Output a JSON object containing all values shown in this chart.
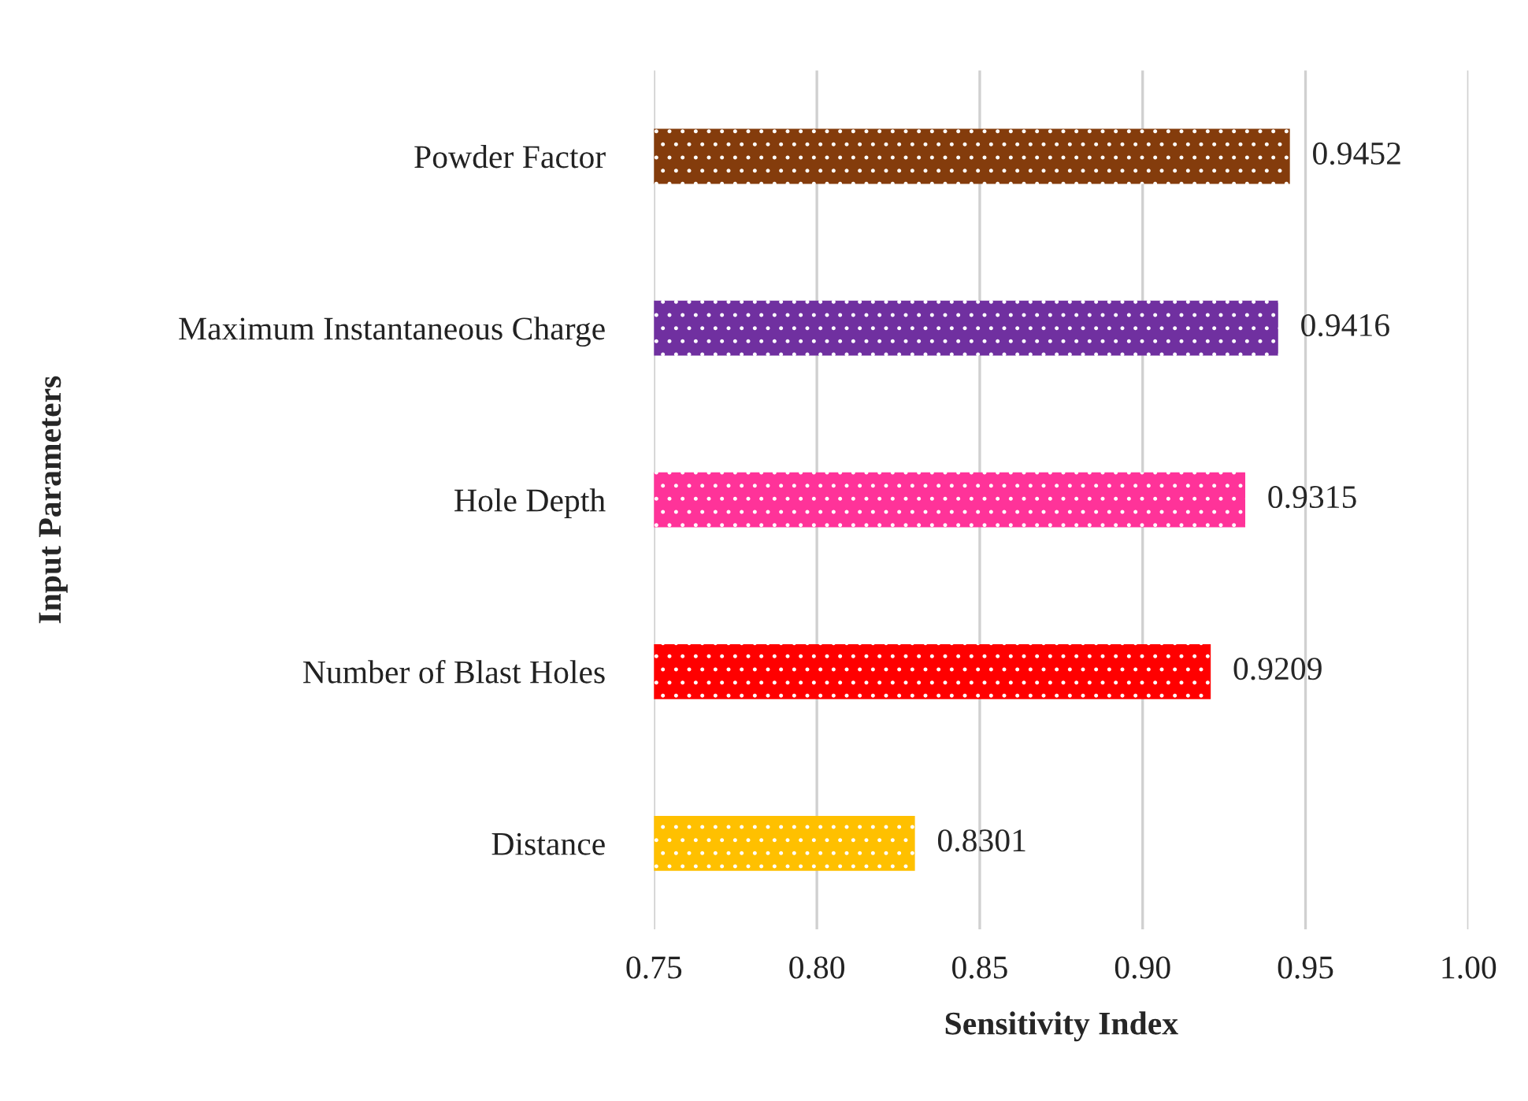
{
  "chart_data": {
    "type": "bar",
    "orientation": "horizontal",
    "xlabel": "Sensitivity Index",
    "ylabel": "Input Parameters",
    "categories": [
      "Powder Factor",
      "Maximum Instantaneous Charge",
      "Hole Depth",
      "Number of Blast Holes",
      "Distance"
    ],
    "values": [
      0.9452,
      0.9416,
      0.9315,
      0.9209,
      0.8301
    ],
    "colors": [
      "#843c0c",
      "#7030a0",
      "#ff3399",
      "#ff0000",
      "#ffc000"
    ],
    "xlim": [
      0.75,
      1.0
    ],
    "xticks": [
      0.75,
      {
        "value": 0.8,
        "label": "0.80"
      },
      0.85,
      {
        "value": 0.9,
        "label": "0.90"
      },
      0.95,
      {
        "value": 1.0,
        "label": "1.00"
      }
    ],
    "grid": "x",
    "data_labels": true,
    "legend": false
  }
}
